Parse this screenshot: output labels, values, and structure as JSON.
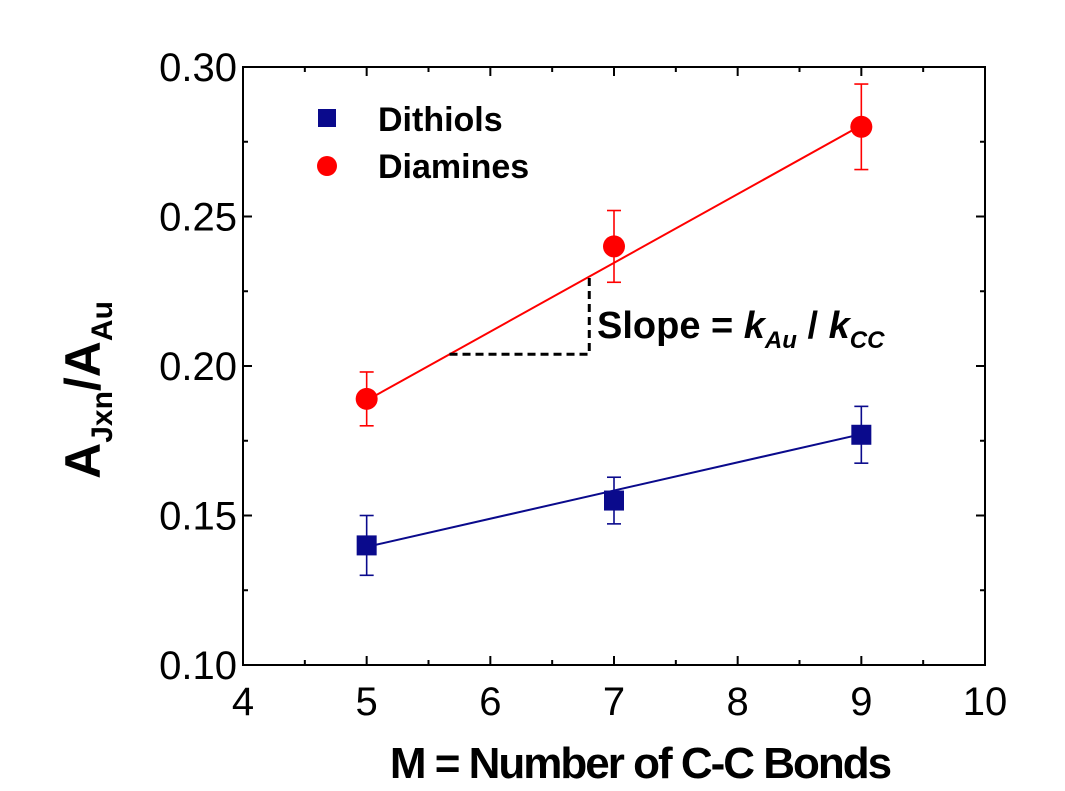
{
  "chart_data": {
    "type": "scatter",
    "xlabel": "M = Number of C-C Bonds",
    "ylabel": {
      "A1": "A",
      "sub1": "Jxn",
      "slash": "/",
      "A2": "A",
      "sub2": "Au"
    },
    "xlim": [
      4,
      10
    ],
    "ylim": [
      0.1,
      0.3
    ],
    "x_ticks": [
      "4",
      "5",
      "6",
      "7",
      "8",
      "9",
      "10"
    ],
    "y_ticks": [
      "0.10",
      "0.15",
      "0.20",
      "0.25",
      "0.30"
    ],
    "legend_position": "top-left",
    "series": [
      {
        "name": "Dithiols",
        "marker": "square",
        "color": "#0a0a8c",
        "points": [
          {
            "x": 5,
            "y": 0.14,
            "err": 0.01
          },
          {
            "x": 7,
            "y": 0.155,
            "err": 0.0078
          },
          {
            "x": 9,
            "y": 0.177,
            "err": 0.0095
          }
        ],
        "fit": {
          "x": [
            5,
            9
          ],
          "y": [
            0.1395,
            0.1772
          ]
        }
      },
      {
        "name": "Diamines",
        "marker": "circle",
        "color": "#ff0000",
        "points": [
          {
            "x": 5,
            "y": 0.189,
            "err": 0.009
          },
          {
            "x": 7,
            "y": 0.24,
            "err": 0.012
          },
          {
            "x": 9,
            "y": 0.28,
            "err": 0.0143
          }
        ],
        "fit": {
          "x": [
            5,
            9
          ],
          "y": [
            0.1885,
            0.2805
          ]
        }
      }
    ],
    "annotation": {
      "text_prefix": "Slope = ",
      "k1": "k",
      "k1_sub": "Au",
      "slash": " / ",
      "k2": "k",
      "k2_sub": "CC"
    }
  }
}
